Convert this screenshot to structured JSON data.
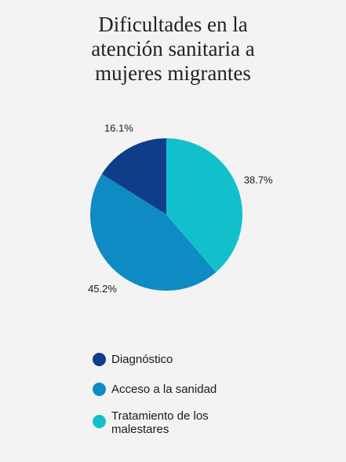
{
  "title_lines": [
    "Dificultades en la",
    "atención sanitaria a",
    "mujeres migrantes"
  ],
  "colors": {
    "diagnostico": "#0f3d8a",
    "acceso": "#0f8bc4",
    "tratamiento": "#12c0cc"
  },
  "chart_data": {
    "type": "pie",
    "title": "Dificultades en la atención sanitaria a mujeres migrantes",
    "slices": [
      {
        "label": "Diagnóstico",
        "value": 16.1,
        "display": "16.1%",
        "color": "#0f3d8a"
      },
      {
        "label": "Acceso a la sanidad",
        "value": 45.2,
        "display": "45.2%",
        "color": "#0f8bc4"
      },
      {
        "label": "Tratamiento de los malestares",
        "value": 38.7,
        "display": "38.7%",
        "color": "#12c0cc"
      }
    ],
    "legend_position": "bottom"
  },
  "legend": [
    {
      "lines": [
        "Diagnóstico"
      ],
      "color": "#0f3d8a"
    },
    {
      "lines": [
        "Acceso a la sanidad"
      ],
      "color": "#0f8bc4"
    },
    {
      "lines": [
        "Tratamiento de los",
        "malestares"
      ],
      "color": "#12c0cc"
    }
  ]
}
